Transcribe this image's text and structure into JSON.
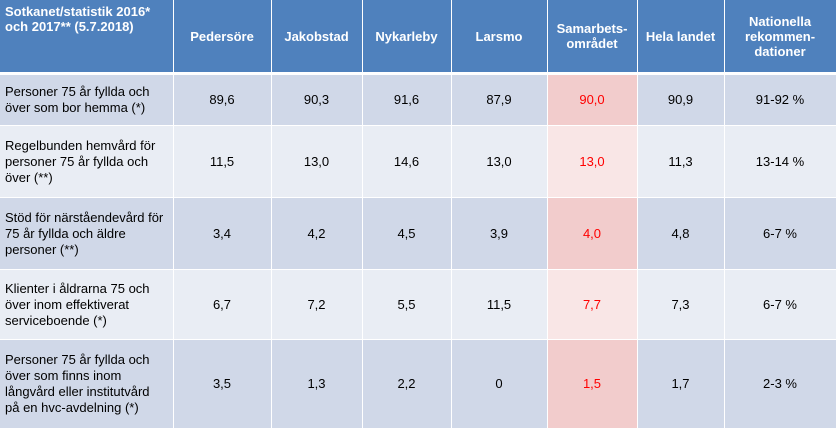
{
  "header": {
    "corner": "Sotkanet/statistik 2016* och 2017** (5.7.2018)",
    "columns": [
      "Pedersöre",
      "Jakobstad",
      "Nykarleby",
      "Larsmo",
      "Samarbets-området",
      "Hela landet",
      "Nationella rekommen-dationer"
    ]
  },
  "rows": [
    {
      "label": "Personer 75 år fyllda och över som bor hemma (*)",
      "values": [
        "89,6",
        "90,3",
        "91,6",
        "87,9",
        "90,0",
        "90,9",
        "91-92 %"
      ]
    },
    {
      "label": "Regelbunden hemvård för personer 75 år fyllda och över (**)",
      "values": [
        "11,5",
        "13,0",
        "14,6",
        "13,0",
        "13,0",
        "11,3",
        "13-14 %"
      ]
    },
    {
      "label": "Stöd för närståendevård för 75 år fyllda och äldre personer (**)",
      "values": [
        "3,4",
        "4,2",
        "4,5",
        "3,9",
        "4,0",
        "4,8",
        "6-7 %"
      ]
    },
    {
      "label": "Klienter i åldrarna 75 och över inom effektiverat serviceboende (*)",
      "values": [
        "6,7",
        "7,2",
        "5,5",
        "11,5",
        "7,7",
        "7,3",
        "6-7 %"
      ]
    },
    {
      "label": "Personer 75 år fyllda och över som finns inom långvård eller institutvård på en hvc-avdelning (*)",
      "values": [
        "3,5",
        "1,3",
        "2,2",
        "0",
        "1,5",
        "1,7",
        "2-3 %"
      ]
    }
  ],
  "colors": {
    "header_bg": "#4f81bd",
    "row_band_dark": "#d0d8e8",
    "row_band_light": "#e9edf4",
    "region_highlight_dark": "#f2cccc",
    "region_highlight_light": "#f9e6e6",
    "region_text": "#ff0000"
  }
}
